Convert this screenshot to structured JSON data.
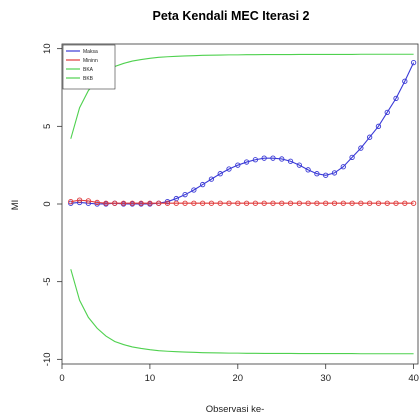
{
  "chart_data": {
    "type": "line",
    "title": "Peta Kendali MEC Iterasi 2",
    "xlabel": "Observasi ke-",
    "ylabel": "MI",
    "xlim": [
      0,
      40.5
    ],
    "ylim": [
      -10.3,
      10.3
    ],
    "x_ticks": [
      0,
      10,
      20,
      30,
      40
    ],
    "y_ticks": [
      -10,
      -5,
      0,
      5,
      10
    ],
    "legend": {
      "position": "top-left",
      "entries": [
        "Maksa",
        "Mininn",
        "BKA",
        "BKB"
      ]
    },
    "x": [
      1,
      2,
      3,
      4,
      5,
      6,
      7,
      8,
      9,
      10,
      11,
      12,
      13,
      14,
      15,
      16,
      17,
      18,
      19,
      20,
      21,
      22,
      23,
      24,
      25,
      26,
      27,
      28,
      29,
      30,
      31,
      32,
      33,
      34,
      35,
      36,
      37,
      38,
      39,
      40
    ],
    "series": [
      {
        "name": "Maksa",
        "color": "#3a3ad6",
        "marker": "circle",
        "values": [
          0.05,
          0.1,
          0.05,
          0.0,
          0.0,
          0.05,
          0.0,
          0.0,
          0.0,
          0.0,
          0.05,
          0.15,
          0.35,
          0.6,
          0.9,
          1.25,
          1.6,
          1.95,
          2.25,
          2.5,
          2.7,
          2.85,
          2.95,
          2.95,
          2.9,
          2.75,
          2.5,
          2.2,
          1.95,
          1.85,
          2.0,
          2.4,
          3.0,
          3.6,
          4.3,
          5.0,
          5.9,
          6.8,
          7.9,
          9.1
        ]
      },
      {
        "name": "Mininn",
        "color": "#e03a3a",
        "marker": "circle",
        "values": [
          0.15,
          0.25,
          0.2,
          0.1,
          0.05,
          0.05,
          0.05,
          0.05,
          0.05,
          0.05,
          0.05,
          0.05,
          0.05,
          0.05,
          0.05,
          0.05,
          0.05,
          0.05,
          0.05,
          0.05,
          0.05,
          0.05,
          0.05,
          0.05,
          0.05,
          0.05,
          0.05,
          0.05,
          0.05,
          0.05,
          0.05,
          0.05,
          0.05,
          0.05,
          0.05,
          0.05,
          0.05,
          0.05,
          0.05,
          0.05
        ]
      },
      {
        "name": "BKA",
        "color": "#4fd14f",
        "marker": "none",
        "values": [
          4.2,
          6.2,
          7.3,
          8.0,
          8.5,
          8.85,
          9.05,
          9.2,
          9.3,
          9.38,
          9.44,
          9.48,
          9.51,
          9.53,
          9.55,
          9.57,
          9.58,
          9.59,
          9.6,
          9.6,
          9.61,
          9.61,
          9.62,
          9.62,
          9.62,
          9.62,
          9.63,
          9.63,
          9.63,
          9.63,
          9.63,
          9.63,
          9.63,
          9.64,
          9.64,
          9.64,
          9.64,
          9.64,
          9.64,
          9.64
        ]
      },
      {
        "name": "BKB",
        "color": "#4fd14f",
        "marker": "none",
        "values": [
          -4.2,
          -6.2,
          -7.3,
          -8.0,
          -8.5,
          -8.85,
          -9.05,
          -9.2,
          -9.3,
          -9.38,
          -9.44,
          -9.48,
          -9.51,
          -9.53,
          -9.55,
          -9.57,
          -9.58,
          -9.59,
          -9.6,
          -9.6,
          -9.61,
          -9.61,
          -9.62,
          -9.62,
          -9.62,
          -9.62,
          -9.63,
          -9.63,
          -9.63,
          -9.63,
          -9.63,
          -9.63,
          -9.63,
          -9.64,
          -9.64,
          -9.64,
          -9.64,
          -9.64,
          -9.64,
          -9.64
        ]
      }
    ]
  }
}
